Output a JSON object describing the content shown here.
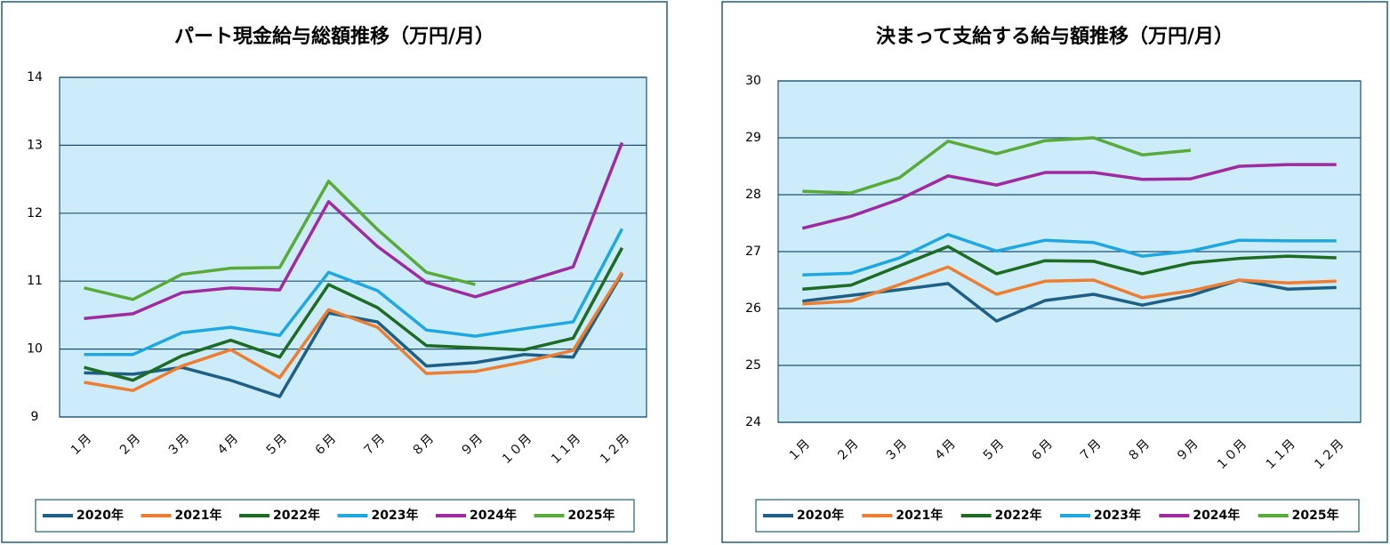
{
  "chart_data": [
    {
      "type": "line",
      "title": "パート現金給与総額推移（万円/月）",
      "categories": [
        "１月",
        "２月",
        "３月",
        "４月",
        "５月",
        "６月",
        "７月",
        "８月",
        "９月",
        "１０月",
        "１１月",
        "１２月"
      ],
      "ylim": [
        9,
        14
      ],
      "yticks": [
        9,
        10,
        11,
        12,
        13,
        14
      ],
      "grid": true,
      "legend": "bottom",
      "series": [
        {
          "name": "2020年",
          "color": "#1f5f86",
          "values": [
            9.65,
            9.63,
            9.73,
            9.54,
            9.3,
            10.53,
            10.4,
            9.75,
            9.8,
            9.92,
            9.88,
            11.11
          ]
        },
        {
          "name": "2021年",
          "color": "#ed7d31",
          "values": [
            9.51,
            9.39,
            9.75,
            9.99,
            9.58,
            10.58,
            10.32,
            9.64,
            9.67,
            9.81,
            9.98,
            11.13
          ]
        },
        {
          "name": "2022年",
          "color": "#1e6b24",
          "values": [
            9.73,
            9.54,
            9.9,
            10.13,
            9.88,
            10.95,
            10.61,
            10.05,
            10.02,
            9.99,
            10.16,
            11.49
          ]
        },
        {
          "name": "2023年",
          "color": "#1fa8e0",
          "values": [
            9.92,
            9.92,
            10.24,
            10.32,
            10.2,
            11.13,
            10.86,
            10.28,
            10.19,
            10.3,
            10.4,
            11.77
          ]
        },
        {
          "name": "2024年",
          "color": "#a02ba0",
          "values": [
            10.45,
            10.52,
            10.83,
            10.9,
            10.87,
            12.17,
            11.51,
            10.98,
            10.77,
            10.99,
            11.21,
            13.04
          ]
        },
        {
          "name": "2025年",
          "color": "#5aaa3a",
          "values": [
            10.9,
            10.73,
            11.1,
            11.19,
            11.2,
            12.47,
            11.76,
            11.13,
            10.95,
            null,
            null,
            null
          ]
        }
      ]
    },
    {
      "type": "line",
      "title": "決まって支給する給与額推移（万円/月）",
      "categories": [
        "１月",
        "２月",
        "３月",
        "４月",
        "５月",
        "６月",
        "７月",
        "８月",
        "９月",
        "１０月",
        "１１月",
        "１２月"
      ],
      "ylim": [
        24,
        30
      ],
      "yticks": [
        24,
        25,
        26,
        27,
        28,
        29,
        30
      ],
      "grid": true,
      "legend": "bottom",
      "series": [
        {
          "name": "2020年",
          "color": "#1f5f86",
          "values": [
            26.13,
            26.23,
            26.33,
            26.44,
            25.78,
            26.14,
            26.25,
            26.06,
            26.23,
            26.5,
            26.34,
            26.37
          ]
        },
        {
          "name": "2021年",
          "color": "#ed7d31",
          "values": [
            26.08,
            26.13,
            26.42,
            26.73,
            26.25,
            26.48,
            26.5,
            26.19,
            26.31,
            26.5,
            26.45,
            26.48
          ]
        },
        {
          "name": "2022年",
          "color": "#1e6b24",
          "values": [
            26.34,
            26.41,
            26.75,
            27.09,
            26.61,
            26.84,
            26.83,
            26.61,
            26.8,
            26.88,
            26.92,
            26.89
          ]
        },
        {
          "name": "2023年",
          "color": "#1fa8e0",
          "values": [
            26.59,
            26.62,
            26.89,
            27.3,
            27.01,
            27.2,
            27.16,
            26.92,
            27.01,
            27.2,
            27.19,
            27.19
          ]
        },
        {
          "name": "2024年",
          "color": "#a02ba0",
          "values": [
            27.41,
            27.62,
            27.92,
            28.33,
            28.17,
            28.39,
            28.39,
            28.27,
            28.28,
            28.5,
            28.53,
            28.53
          ]
        },
        {
          "name": "2025年",
          "color": "#5aaa3a",
          "values": [
            28.06,
            28.03,
            28.3,
            28.94,
            28.72,
            28.95,
            29.0,
            28.7,
            28.78,
            null,
            null,
            null
          ]
        }
      ]
    }
  ]
}
